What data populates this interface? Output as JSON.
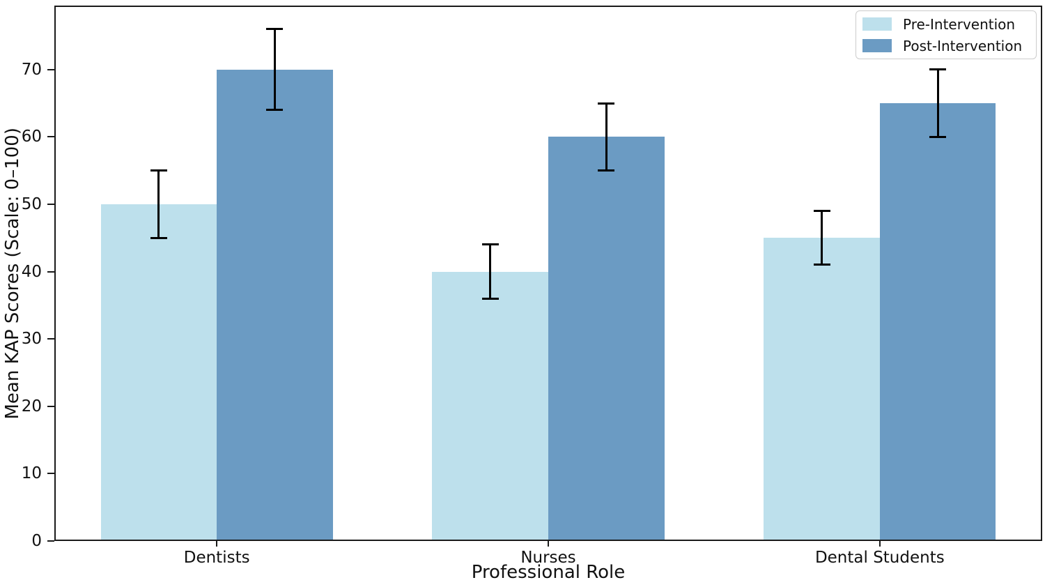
{
  "chart_data": {
    "type": "bar",
    "categories": [
      "Dentists",
      "Nurses",
      "Dental Students"
    ],
    "series": [
      {
        "name": "Pre-Intervention",
        "values": [
          50,
          40,
          45
        ],
        "errors": [
          5,
          4,
          4
        ],
        "color": "#bde0ec"
      },
      {
        "name": "Post-Intervention",
        "values": [
          70,
          60,
          65
        ],
        "errors": [
          6,
          5,
          5
        ],
        "color": "#6b9bc3"
      }
    ],
    "title": "",
    "xlabel": "Professional Role",
    "ylabel": "Mean KAP Scores (Scale: 0–100)",
    "ylim": [
      0,
      79.5
    ],
    "yticks": [
      0,
      10,
      20,
      30,
      40,
      50,
      60,
      70
    ],
    "xlim": [
      -0.49,
      2.49
    ],
    "bar_width": 0.35,
    "grid": false,
    "legend_position": "upper right",
    "error_bar_color": "#000000",
    "spine_color": "#1a1a1a",
    "background_color": "#ffffff"
  }
}
